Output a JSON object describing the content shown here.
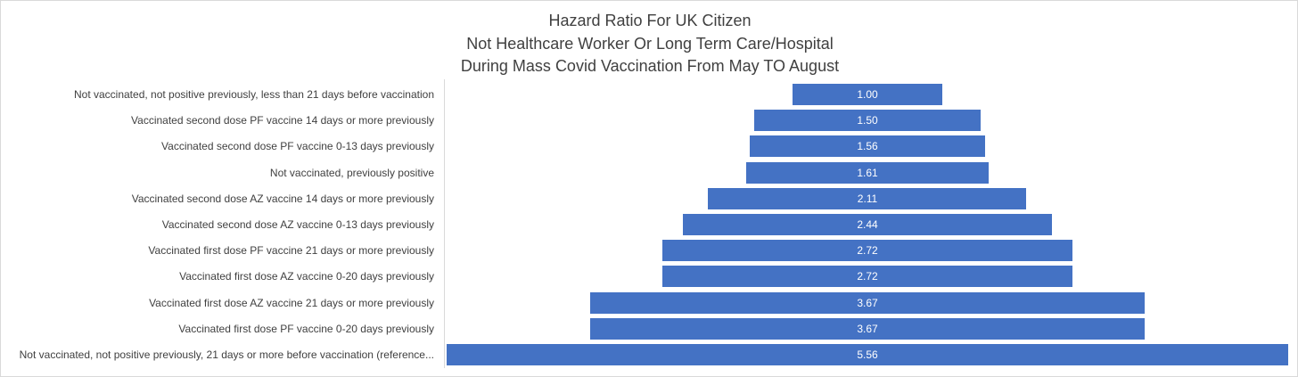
{
  "chart_data": {
    "type": "bar",
    "orientation": "horizontal",
    "style": "centered-funnel",
    "title_lines": [
      "Hazard Ratio For UK Citizen",
      "Not Healthcare Worker Or Long Term Care/Hospital",
      "During Mass Covid Vaccination From May TO August"
    ],
    "categories": [
      "Not vaccinated, not positive previously, less than 21 days before vaccination",
      "Vaccinated second dose PF vaccine 14 days or more previously",
      "Vaccinated second dose PF vaccine 0-13 days previously",
      "Not vaccinated, previously positive",
      "Vaccinated second dose AZ vaccine 14 days or more previously",
      "Vaccinated second dose AZ vaccine 0-13 days previously",
      "Vaccinated first dose PF vaccine 21 days or more previously",
      "Vaccinated first dose AZ vaccine 0-20 days previously",
      "Vaccinated first dose AZ vaccine 21 days or more previously",
      "Vaccinated first dose PF vaccine 0-20 days previously",
      "Not vaccinated, not positive previously, 21 days or more before vaccination (reference..."
    ],
    "values": [
      1.0,
      1.5,
      1.56,
      1.61,
      2.11,
      2.44,
      2.72,
      2.72,
      3.67,
      3.67,
      5.56
    ],
    "value_labels": [
      "1.00",
      "1.50",
      "1.56",
      "1.61",
      "2.11",
      "2.44",
      "2.72",
      "2.72",
      "3.67",
      "3.67",
      "5.56"
    ],
    "bar_color": "#4472c4",
    "label_color": "#ffffff",
    "text_color": "#404040",
    "legend": "none",
    "grid": false
  }
}
